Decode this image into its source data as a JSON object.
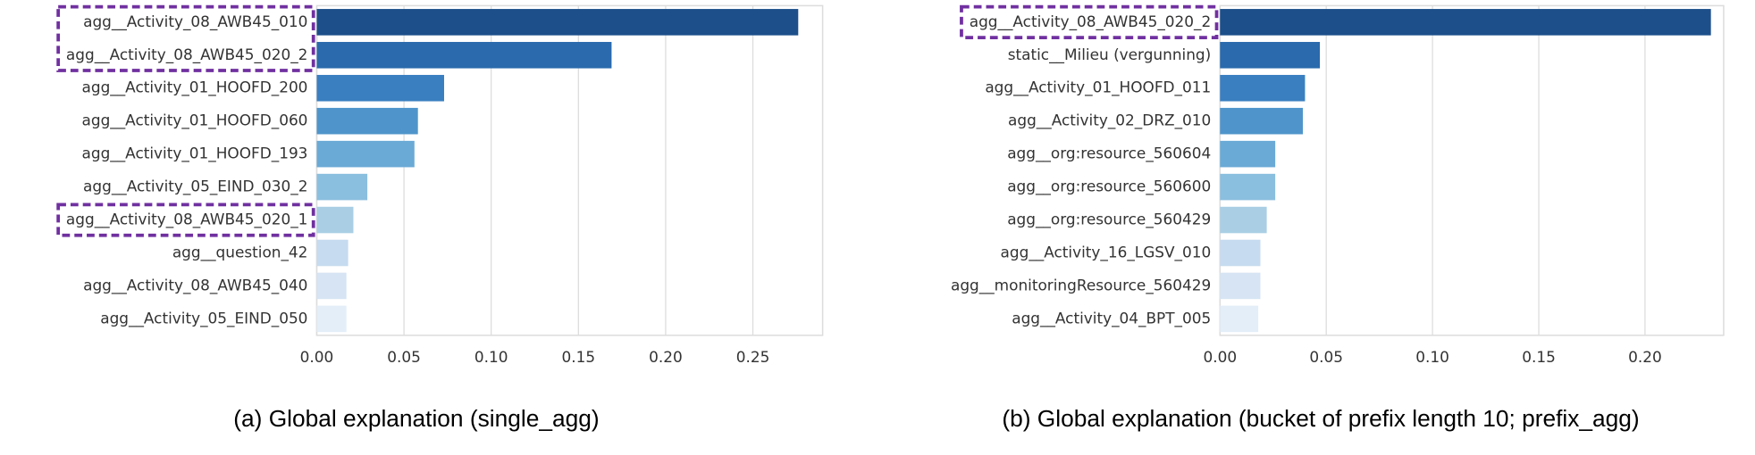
{
  "chart_data": [
    {
      "type": "barh",
      "caption": "(a) Global explanation (single_agg)",
      "categories": [
        "agg__Activity_08_AWB45_010",
        "agg__Activity_08_AWB45_020_2",
        "agg__Activity_01_HOOFD_200",
        "agg__Activity_01_HOOFD_060",
        "agg__Activity_01_HOOFD_193",
        "agg__Activity_05_EIND_030_2",
        "agg__Activity_08_AWB45_020_1",
        "agg__question_42",
        "agg__Activity_08_AWB45_040",
        "agg__Activity_05_EIND_050"
      ],
      "values": [
        0.276,
        0.169,
        0.073,
        0.058,
        0.056,
        0.029,
        0.021,
        0.018,
        0.017,
        0.017
      ],
      "colors": [
        "#1d4f8a",
        "#2a6aad",
        "#3a7fc0",
        "#4f95cb",
        "#6aaad6",
        "#8bbfdf",
        "#aacfe5",
        "#c6dbef",
        "#d6e4f3",
        "#e3eef8"
      ],
      "xlim": [
        0,
        0.29
      ],
      "xticks": [
        {
          "value": 0,
          "label": "0.00"
        },
        {
          "value": 0.05,
          "label": "0.05"
        },
        {
          "value": 0.1,
          "label": "0.10"
        },
        {
          "value": 0.15,
          "label": "0.15"
        },
        {
          "value": 0.2,
          "label": "0.20"
        },
        {
          "value": 0.25,
          "label": "0.25"
        }
      ],
      "grid": true,
      "highlight": [
        0,
        1,
        6
      ],
      "highlight_color": "#7030a0"
    },
    {
      "type": "barh",
      "caption": "(b) Global explanation (bucket of prefix length 10; prefix_agg)",
      "categories": [
        "agg__Activity_08_AWB45_020_2",
        "static__Milieu (vergunning)",
        "agg__Activity_01_HOOFD_011",
        "agg__Activity_02_DRZ_010",
        "agg__org:resource_560604",
        "agg__org:resource_560600",
        "agg__org:resource_560429",
        "agg__Activity_16_LGSV_010",
        "agg__monitoringResource_560429",
        "agg__Activity_04_BPT_005"
      ],
      "values": [
        0.231,
        0.047,
        0.04,
        0.039,
        0.026,
        0.026,
        0.022,
        0.019,
        0.019,
        0.018
      ],
      "colors": [
        "#1d4f8a",
        "#2a6aad",
        "#3a7fc0",
        "#4f95cb",
        "#6aaad6",
        "#8bbfdf",
        "#aacfe5",
        "#c6dbef",
        "#d6e4f3",
        "#e3eef8"
      ],
      "xlim": [
        0,
        0.237
      ],
      "xticks": [
        {
          "value": 0,
          "label": "0.00"
        },
        {
          "value": 0.05,
          "label": "0.05"
        },
        {
          "value": 0.1,
          "label": "0.10"
        },
        {
          "value": 0.15,
          "label": "0.15"
        },
        {
          "value": 0.2,
          "label": "0.20"
        }
      ],
      "grid": true,
      "highlight": [
        0
      ],
      "highlight_color": "#7030a0"
    }
  ]
}
